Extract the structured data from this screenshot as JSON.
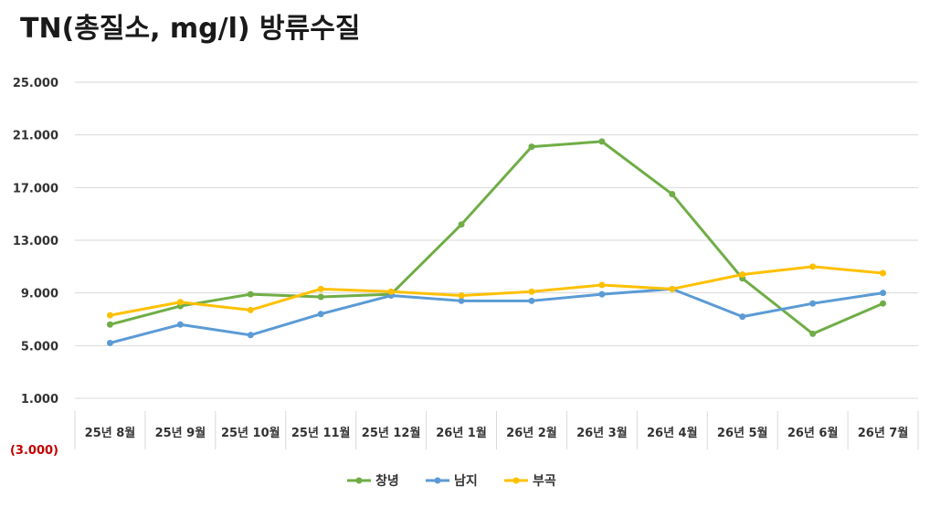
{
  "chart_data": {
    "type": "line",
    "title": "TN(총질소, mg/l) 방류수질",
    "categories": [
      "25년 8월",
      "25년 9월",
      "25년 10월",
      "25년 11월",
      "25년 12월",
      "26년 1월",
      "26년 2월",
      "26년 3월",
      "26년 4월",
      "26년 5월",
      "26년 6월",
      "26년 7월"
    ],
    "y_ticks": [
      {
        "value": 25,
        "label": "25.000"
      },
      {
        "value": 21,
        "label": "21.000"
      },
      {
        "value": 17,
        "label": "17.000"
      },
      {
        "value": 13,
        "label": "13.000"
      },
      {
        "value": 9,
        "label": "9.000"
      },
      {
        "value": 5,
        "label": "5.000"
      },
      {
        "value": 1,
        "label": "1.000"
      },
      {
        "value": -3,
        "label": "(3.000)"
      }
    ],
    "ylim": [
      -3,
      25
    ],
    "grid": true,
    "legend_position": "bottom",
    "series": [
      {
        "name": "창녕",
        "color": "#70ad47",
        "values": [
          6.6,
          8.0,
          8.9,
          8.7,
          8.9,
          14.2,
          20.1,
          20.5,
          16.5,
          10.1,
          5.9,
          8.2
        ]
      },
      {
        "name": "남지",
        "color": "#5b9bd5",
        "values": [
          5.2,
          6.6,
          5.8,
          7.4,
          8.8,
          8.4,
          8.4,
          8.9,
          9.3,
          7.2,
          8.2,
          9.0
        ]
      },
      {
        "name": "부곡",
        "color": "#ffc000",
        "values": [
          7.3,
          8.3,
          7.7,
          9.3,
          9.1,
          8.8,
          9.1,
          9.6,
          9.3,
          10.4,
          11.0,
          10.5
        ]
      }
    ]
  }
}
